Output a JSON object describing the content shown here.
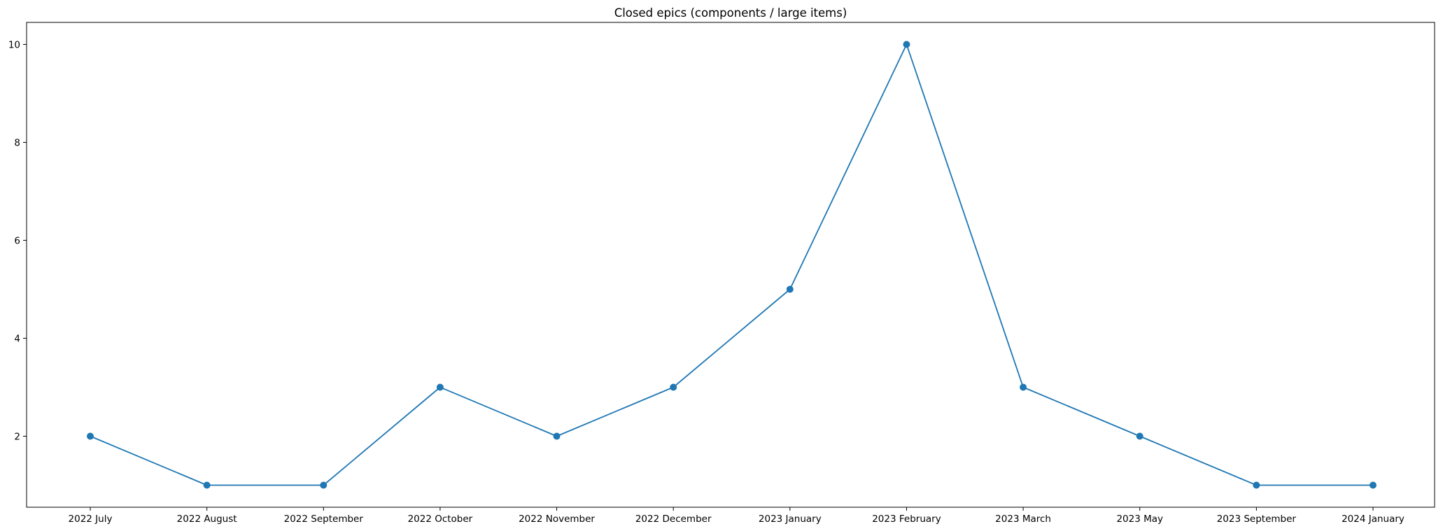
{
  "chart_data": {
    "type": "line",
    "title": "Closed epics (components / large items)",
    "xlabel": "",
    "ylabel": "",
    "categories": [
      "2022 July",
      "2022 August",
      "2022 September",
      "2022 October",
      "2022 November",
      "2022 December",
      "2023 January",
      "2023 February",
      "2023 March",
      "2023 May",
      "2023 September",
      "2024 January"
    ],
    "series": [
      {
        "values": [
          2,
          1,
          1,
          3,
          2,
          3,
          5,
          10,
          3,
          2,
          1,
          1
        ],
        "color": "#1f77b4",
        "marker": "circle"
      }
    ],
    "ylim": [
      0.55,
      10.45
    ],
    "yticks": [
      2,
      4,
      6,
      8,
      10
    ],
    "grid": false,
    "legend": "none"
  }
}
